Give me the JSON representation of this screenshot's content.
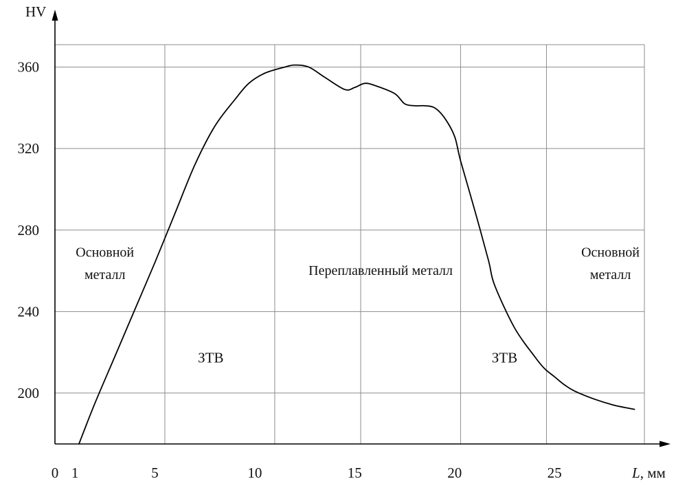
{
  "chart_data": {
    "type": "line",
    "ylabel": "HV",
    "xlabel": {
      "var": "L",
      "unit": ", мм"
    },
    "xlim": [
      0,
      29.5
    ],
    "ylim": [
      175,
      371
    ],
    "x_ticks": [
      {
        "value": 0,
        "label": "0"
      },
      {
        "value": 1,
        "label": "1"
      },
      {
        "value": 5,
        "label": "5"
      },
      {
        "value": 10,
        "label": "10"
      },
      {
        "value": 15,
        "label": "15"
      },
      {
        "value": 20,
        "label": "20"
      },
      {
        "value": 25,
        "label": "25"
      }
    ],
    "y_ticks": [
      200,
      240,
      280,
      320,
      360
    ],
    "vertical_lines": [
      5.5,
      11,
      15.3,
      20.3,
      24.6,
      29.5
    ],
    "grid": true,
    "series": [
      {
        "x": [
          1.2,
          2.0,
          3.0,
          4.0,
          5.0,
          6.0,
          7.0,
          8.0,
          9.0,
          9.7,
          10.5,
          11.5,
          12.0,
          12.7,
          13.5,
          14.5,
          15.0,
          15.5,
          16.0,
          17.0,
          17.5,
          18.0,
          18.5,
          19.0,
          19.5,
          20.0,
          20.3,
          21.0,
          21.7,
          22.0,
          23.0,
          24.0,
          24.5,
          25.0,
          25.5,
          26.0,
          27.0,
          28.0,
          29.0
        ],
        "y": [
          175,
          195,
          218,
          241,
          264,
          288,
          312,
          331,
          344,
          352,
          357,
          360,
          361,
          360,
          355,
          349,
          350,
          352,
          351,
          347,
          342,
          341,
          341,
          340,
          335,
          326,
          314,
          290,
          265,
          253,
          232,
          218,
          212,
          208,
          204,
          201,
          197,
          194,
          192
        ]
      }
    ],
    "annotations": [
      {
        "text": "Основной",
        "x": 2.5,
        "y": 267
      },
      {
        "text": "металл",
        "x": 2.5,
        "y": 256
      },
      {
        "text": "Переплавленный металл",
        "x": 16.3,
        "y": 258
      },
      {
        "text": "Основной",
        "x": 27.8,
        "y": 267
      },
      {
        "text": "металл",
        "x": 27.8,
        "y": 256
      },
      {
        "text": "ЗТВ",
        "x": 7.8,
        "y": 215
      },
      {
        "text": "ЗТВ",
        "x": 22.5,
        "y": 215
      }
    ]
  }
}
